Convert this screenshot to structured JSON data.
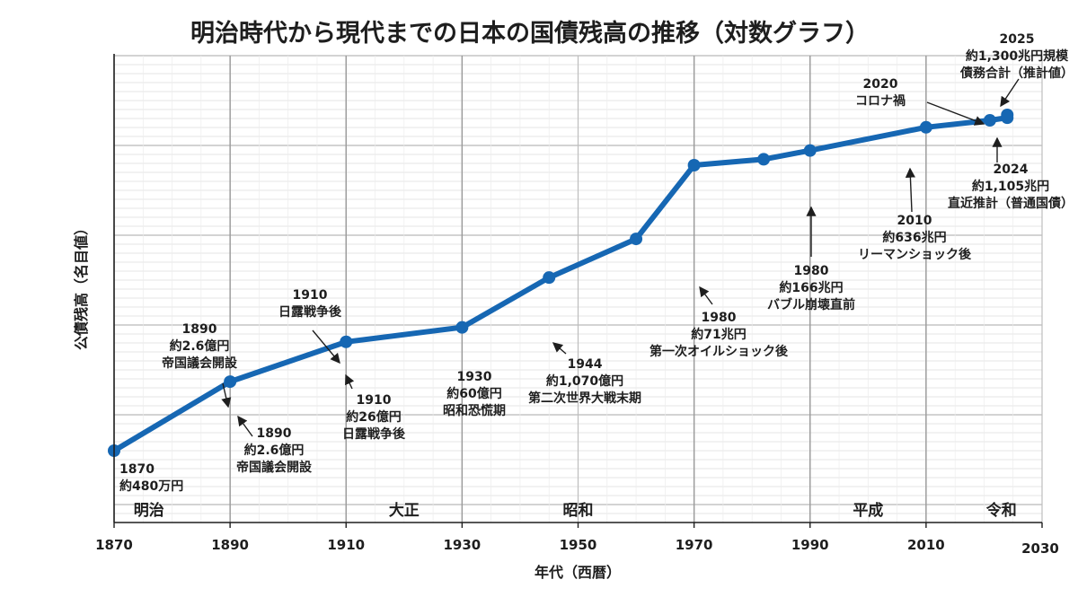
{
  "chart_data": {
    "type": "line",
    "title": "明治時代から現代までの日本の国債残高の推移（対数グラフ）",
    "xlabel": "年代（西暦）",
    "ylabel": "公債残高（名目値）",
    "xlim": [
      1870,
      2030
    ],
    "log_scale_y": true,
    "grid": true,
    "x_ticks": [
      1870,
      1890,
      1910,
      1930,
      1950,
      1970,
      1990,
      2010,
      2030
    ],
    "series": [
      {
        "unit": "億円",
        "color": "#1667b3",
        "points": [
          {
            "x": 1870,
            "y": 0.048
          },
          {
            "x": 1890,
            "y": 2.6
          },
          {
            "x": 1910,
            "y": 26
          },
          {
            "x": 1930,
            "y": 60
          },
          {
            "x": 1945,
            "y": 1070
          },
          {
            "x": 1960,
            "y": 10000
          },
          {
            "x": 1970,
            "y": 710000
          },
          {
            "x": 1982,
            "y": 1000000
          },
          {
            "x": 1990,
            "y": 1660000
          },
          {
            "x": 2010,
            "y": 6360000
          },
          {
            "x": 2021,
            "y": 9500000
          },
          {
            "x": 2024,
            "y": 11050000
          }
        ]
      }
    ],
    "extra_points": [
      {
        "x": 2024,
        "y": 13000000,
        "color": "#1667b3"
      }
    ],
    "eras": [
      {
        "label": "明治",
        "x": 1876
      },
      {
        "label": "大正",
        "x": 1920
      },
      {
        "label": "昭和",
        "x": 1950
      },
      {
        "label": "平成",
        "x": 2000
      },
      {
        "label": "令和",
        "x": 2023
      }
    ],
    "era_boundaries": [
      1890,
      1910,
      1930,
      1970,
      1990,
      2010
    ],
    "annotations": [
      {
        "lines": [
          "1870",
          "約480万円"
        ]
      },
      {
        "lines": [
          "1890",
          "約2.6億円",
          "帝国議会開設"
        ]
      },
      {
        "lines": [
          "1890",
          "約2.6億円",
          "帝国議会開設"
        ]
      },
      {
        "lines": [
          "1910",
          "日露戦争後"
        ]
      },
      {
        "lines": [
          "1910",
          "約26億円",
          "日露戦争後"
        ]
      },
      {
        "lines": [
          "1930",
          "約60億円",
          "昭和恐慌期"
        ]
      },
      {
        "lines": [
          "1944",
          "約1,070億円",
          "第二次世界大戦末期"
        ]
      },
      {
        "lines": [
          "1980",
          "約71兆円",
          "第一次オイルショック後"
        ]
      },
      {
        "lines": [
          "1980",
          "約166兆円",
          "バブル崩壊直前"
        ]
      },
      {
        "lines": [
          "2010",
          "約636兆円",
          "リーマンショック後"
        ]
      },
      {
        "lines": [
          "2020",
          "コロナ禍"
        ]
      },
      {
        "lines": [
          "2025",
          "約1,300兆円規模",
          "債務合計（推計値）"
        ]
      },
      {
        "lines": [
          "2024",
          "約1,105兆円",
          "直近推計（普通国債）"
        ]
      }
    ]
  }
}
